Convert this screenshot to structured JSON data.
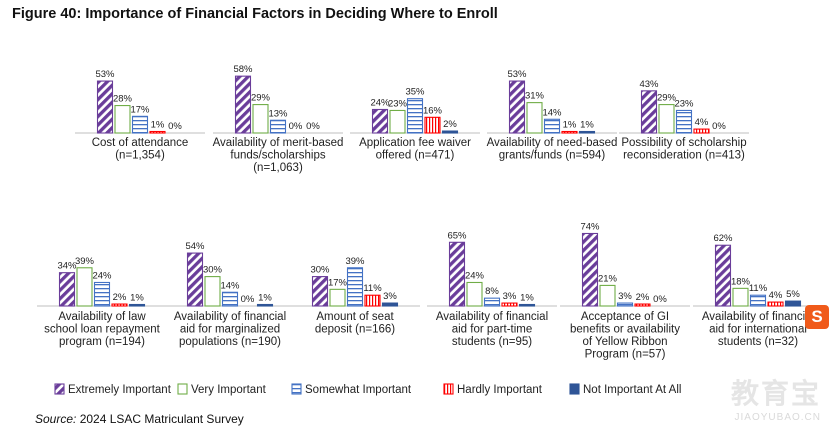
{
  "title": "Figure 40: Importance of Financial Factors in Deciding Where to Enroll",
  "source": {
    "label": "Source:",
    "text": "2024 LSAC Matriculant Survey"
  },
  "watermark": {
    "text": "教育宝",
    "url": "JIAOYUBAO.CN",
    "badge": "S"
  },
  "chart_data": {
    "type": "bar",
    "value_format": "percent",
    "legend_position": "bottom",
    "series": [
      {
        "name": "Extremely Important",
        "color": "#6a3d9a",
        "pattern": "diagonal-stripes"
      },
      {
        "name": "Very Important",
        "color": "#70ad47",
        "pattern": "outline"
      },
      {
        "name": "Somewhat Important",
        "color": "#4472c4",
        "pattern": "horizontal-stripes"
      },
      {
        "name": "Hardly Important",
        "color": "#ff0000",
        "pattern": "vertical-stripes"
      },
      {
        "name": "Not Important At All",
        "color": "#2f5597",
        "pattern": "solid"
      }
    ],
    "panels": [
      {
        "label_lines": [
          "Cost of attendance",
          "(n=1,354)"
        ],
        "values": [
          53,
          28,
          17,
          1,
          0
        ]
      },
      {
        "label_lines": [
          "Availability of merit-based",
          "funds/scholarships",
          "(n=1,063)"
        ],
        "values": [
          58,
          29,
          13,
          0,
          0
        ]
      },
      {
        "label_lines": [
          "Application fee waiver",
          "offered (n=471)"
        ],
        "values": [
          24,
          23,
          35,
          16,
          2
        ]
      },
      {
        "label_lines": [
          "Availability of need-based",
          "grants/funds (n=594)"
        ],
        "values": [
          53,
          31,
          14,
          1,
          1
        ]
      },
      {
        "label_lines": [
          "Possibility of scholarship",
          "reconsideration (n=413)"
        ],
        "values": [
          43,
          29,
          23,
          4,
          0
        ]
      },
      {
        "label_lines": [
          "Availability of law",
          "school loan repayment",
          "program (n=194)"
        ],
        "values": [
          34,
          39,
          24,
          2,
          1
        ]
      },
      {
        "label_lines": [
          "Availability of financial",
          "aid for marginalized",
          "populations (n=190)"
        ],
        "values": [
          54,
          30,
          14,
          0,
          1
        ]
      },
      {
        "label_lines": [
          "Amount of seat",
          "deposit (n=166)"
        ],
        "values": [
          30,
          17,
          39,
          11,
          3
        ]
      },
      {
        "label_lines": [
          "Availability of financial",
          "aid for part-time",
          "students (n=95)"
        ],
        "values": [
          65,
          24,
          8,
          3,
          1
        ]
      },
      {
        "label_lines": [
          "Acceptance of GI",
          "benefits or availability",
          "of Yellow Ribbon",
          "Program (n=57)"
        ],
        "values": [
          74,
          21,
          3,
          2,
          0
        ]
      },
      {
        "label_lines": [
          "Availability of financial",
          "aid for international",
          "students (n=32)"
        ],
        "values": [
          62,
          18,
          11,
          4,
          5
        ]
      }
    ]
  }
}
